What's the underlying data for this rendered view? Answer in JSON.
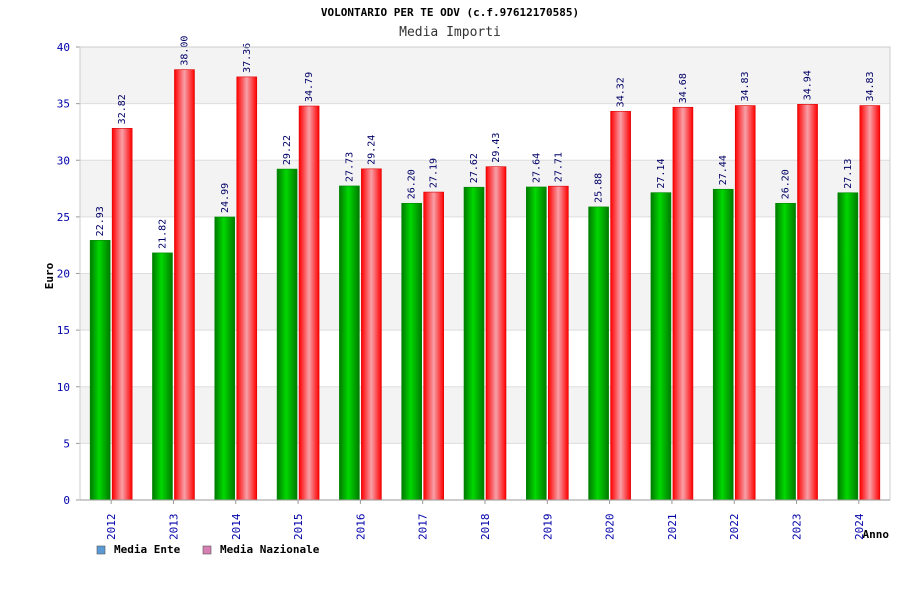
{
  "chart_data": {
    "type": "bar",
    "title": "VOLONTARIO PER TE ODV (c.f.97612170585)",
    "subtitle": "Media Importi",
    "xlabel": "Anno",
    "ylabel": "Euro",
    "ylim": [
      0,
      40
    ],
    "yticks": [
      0,
      5,
      10,
      15,
      20,
      25,
      30,
      35,
      40
    ],
    "categories": [
      "2012",
      "2013",
      "2014",
      "2015",
      "2016",
      "2017",
      "2018",
      "2019",
      "2020",
      "2021",
      "2022",
      "2023",
      "2024"
    ],
    "series": [
      {
        "name": "Media Ente",
        "color": "#00b400",
        "legend_color": "#5b9bd5",
        "values": [
          22.93,
          21.82,
          24.99,
          29.22,
          27.73,
          26.2,
          27.62,
          27.64,
          25.88,
          27.14,
          27.44,
          26.2,
          27.13
        ],
        "labels": [
          "22.93",
          "21.82",
          "24.99",
          "29.22",
          "27.73",
          "26.20",
          "27.62",
          "27.64",
          "25.88",
          "27.14",
          "27.44",
          "26.20",
          "27.13"
        ]
      },
      {
        "name": "Media Nazionale",
        "color": "#ff0000",
        "legend_color": "#d77fb3",
        "values": [
          32.82,
          38.0,
          37.36,
          34.79,
          29.24,
          27.19,
          29.43,
          27.71,
          34.32,
          34.68,
          34.83,
          34.94,
          34.83
        ],
        "labels": [
          "32.82",
          "38.00",
          "37.36",
          "34.79",
          "29.24",
          "27.19",
          "29.43",
          "27.71",
          "34.32",
          "34.68",
          "34.83",
          "34.94",
          "34.83"
        ]
      }
    ],
    "grid": true,
    "legend_position": "bottom-left"
  }
}
